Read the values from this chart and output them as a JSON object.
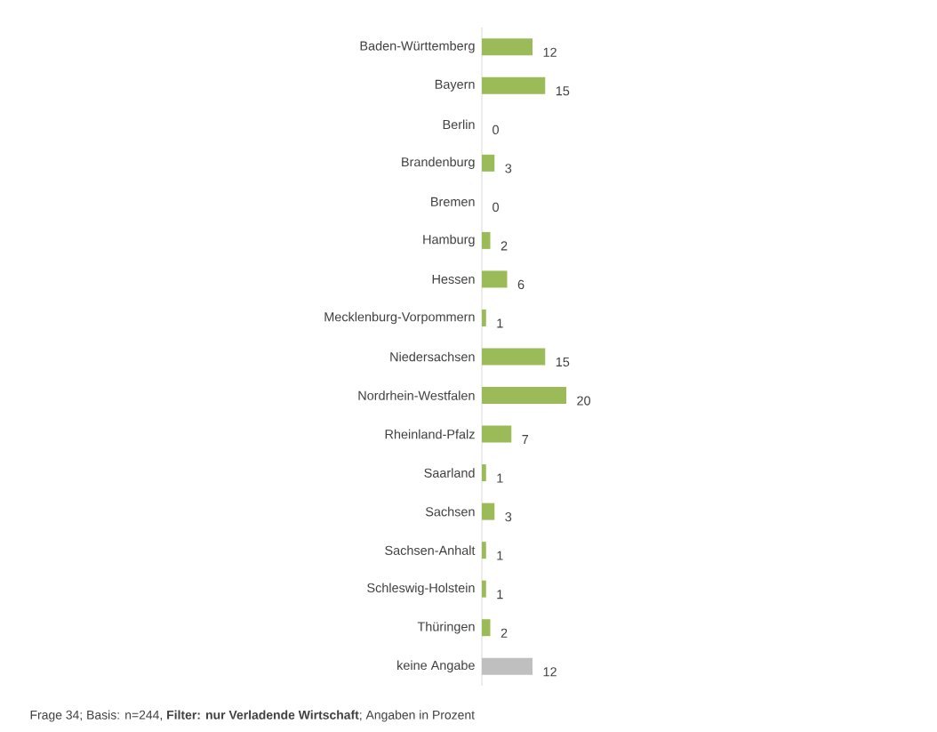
{
  "chart_data": {
    "type": "bar",
    "orientation": "horizontal",
    "categories": [
      "Baden-Württemberg",
      "Bayern",
      "Berlin",
      "Brandenburg",
      "Bremen",
      "Hamburg",
      "Hessen",
      "Mecklenburg-Vorpommern",
      "Niedersachsen",
      "Nordrhein-Westfalen",
      "Rheinland-Pfalz",
      "Saarland",
      "Sachsen",
      "Sachsen-Anhalt",
      "Schleswig-Holstein",
      "Thüringen",
      "keine Angabe"
    ],
    "values": [
      12,
      15,
      0,
      3,
      0,
      2,
      6,
      1,
      15,
      20,
      7,
      1,
      3,
      1,
      1,
      2,
      12
    ],
    "colors": [
      "#9bbb59",
      "#9bbb59",
      "#9bbb59",
      "#9bbb59",
      "#9bbb59",
      "#9bbb59",
      "#9bbb59",
      "#9bbb59",
      "#9bbb59",
      "#9bbb59",
      "#9bbb59",
      "#9bbb59",
      "#9bbb59",
      "#9bbb59",
      "#9bbb59",
      "#9bbb59",
      "#bfbfbf"
    ],
    "data_labels": true,
    "annotations": [
      "Frage 34; Basis: n=244, **Filter: nur Verladende Wirtschaft**; Angaben in Prozent"
    ]
  }
}
